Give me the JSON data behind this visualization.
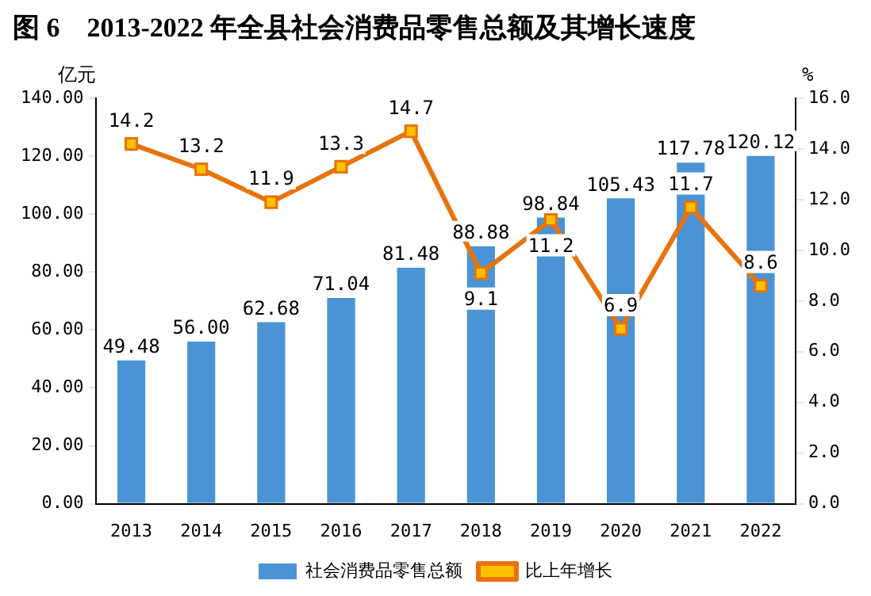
{
  "chart_data": {
    "type": "bar",
    "title": "图 6　2013-2022 年全县社会消费品零售总额及其增长速度",
    "ylabel": "亿元",
    "y2label": "%",
    "categories": [
      "2013",
      "2014",
      "2015",
      "2016",
      "2017",
      "2018",
      "2019",
      "2020",
      "2021",
      "2022"
    ],
    "series": [
      {
        "name": "社会消费品零售总额",
        "color": "#4a94d6",
        "values": [
          49.48,
          56.0,
          62.68,
          71.04,
          81.48,
          88.88,
          98.84,
          105.43,
          117.78,
          120.12
        ],
        "value_labels": [
          "49.48",
          "56.00",
          "62.68",
          "71.04",
          "81.48",
          "88.88",
          "98.84",
          "105.43",
          "117.78",
          "120.12"
        ]
      },
      {
        "name": "比上年增长",
        "type": "line",
        "axis": "y2",
        "color": "#e8730c",
        "values": [
          14.2,
          13.2,
          11.9,
          13.3,
          14.7,
          9.1,
          11.2,
          6.9,
          11.7,
          8.6
        ]
      }
    ],
    "ylim": [
      0,
      140
    ],
    "yticks": [
      {
        "value": 0,
        "label": "0.00"
      },
      {
        "value": 20,
        "label": "20.00"
      },
      {
        "value": 40,
        "label": "40.00"
      },
      {
        "value": 60,
        "label": "60.00"
      },
      {
        "value": 80,
        "label": "80.00"
      },
      {
        "value": 100,
        "label": "100.00"
      },
      {
        "value": 120,
        "label": "120.00"
      },
      {
        "value": 140,
        "label": "140.00"
      }
    ],
    "y2lim": [
      0,
      16
    ],
    "y2ticks": [
      {
        "value": 0,
        "label": "0.0"
      },
      {
        "value": 2,
        "label": "2.0"
      },
      {
        "value": 4,
        "label": "4.0"
      },
      {
        "value": 6,
        "label": "6.0"
      },
      {
        "value": 8,
        "label": "8.0"
      },
      {
        "value": 10,
        "label": "10.0"
      },
      {
        "value": 12,
        "label": "12.0"
      },
      {
        "value": 14,
        "label": "14.0"
      },
      {
        "value": 16,
        "label": "16.0"
      }
    ],
    "data_labels": true,
    "grid": false,
    "legend": "bottom",
    "marker": "square"
  }
}
